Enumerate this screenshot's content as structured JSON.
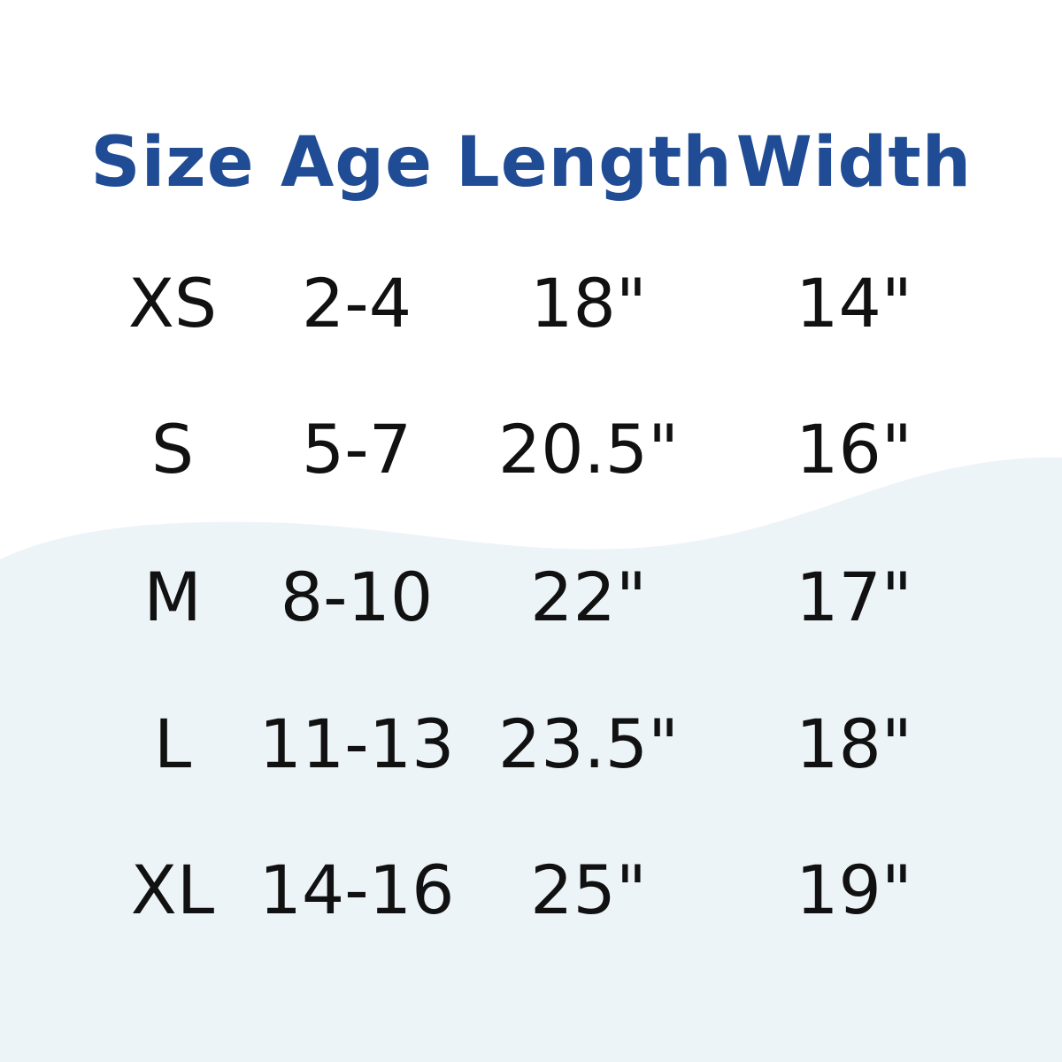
{
  "colors": {
    "header": "#1f4c94",
    "text": "#111111",
    "wave": "#edf4f8",
    "background": "#ffffff"
  },
  "table": {
    "headers": [
      "Size",
      "Age",
      "Length",
      "Width"
    ],
    "rows": [
      [
        "XS",
        "2-4",
        "18\"",
        "14\""
      ],
      [
        "S",
        "5-7",
        "20.5\"",
        "16\""
      ],
      [
        "M",
        "8-10",
        "22\"",
        "17\""
      ],
      [
        "L",
        "11-13",
        "23.5\"",
        "18\""
      ],
      [
        "XL",
        "14-16",
        "25\"",
        "19\""
      ]
    ]
  }
}
